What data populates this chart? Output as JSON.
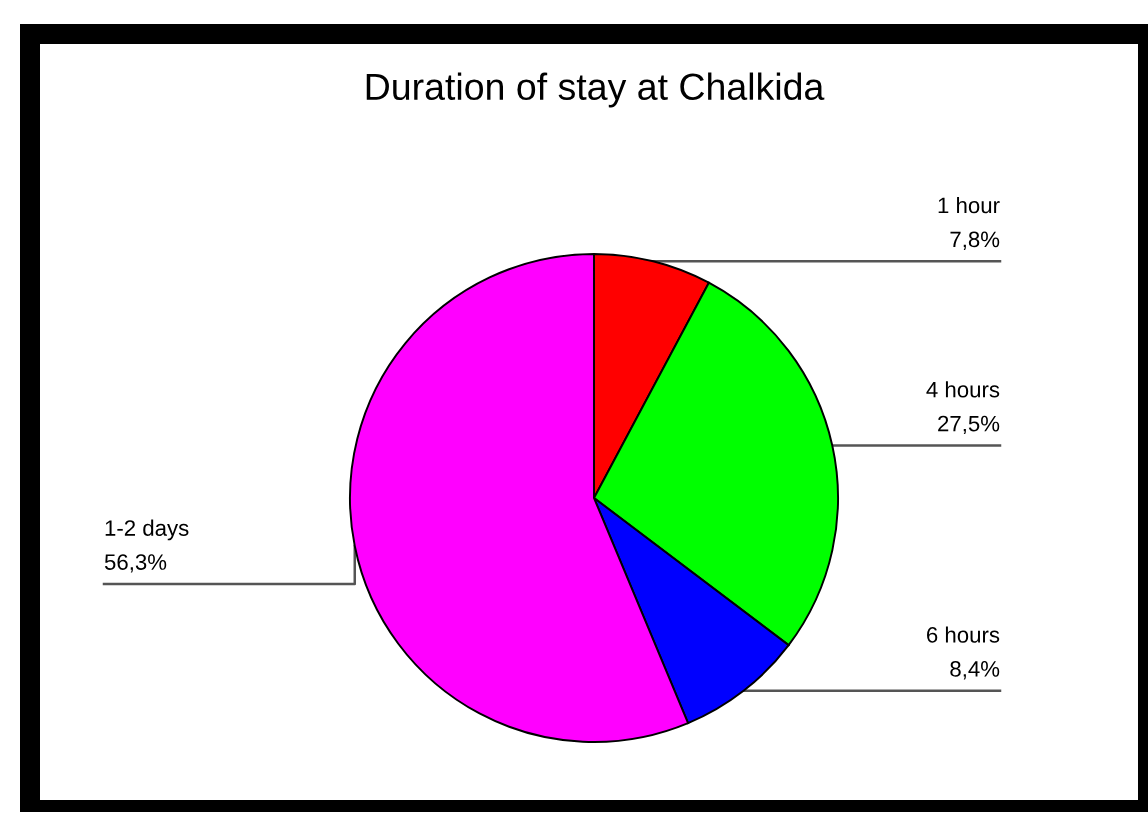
{
  "chart_data": {
    "type": "pie",
    "title": "Duration of stay at Chalkida",
    "categories": [
      "1 hour",
      "4 hours",
      "6 hours",
      "1-2 days"
    ],
    "values": [
      7.8,
      27.5,
      8.4,
      56.3
    ],
    "colors": [
      "#ff0000",
      "#00ff00",
      "#0000ff",
      "#ff00ff"
    ],
    "value_labels": [
      "7,8%",
      "27,5%",
      "8,4%",
      "56,3%"
    ],
    "legend": false
  }
}
